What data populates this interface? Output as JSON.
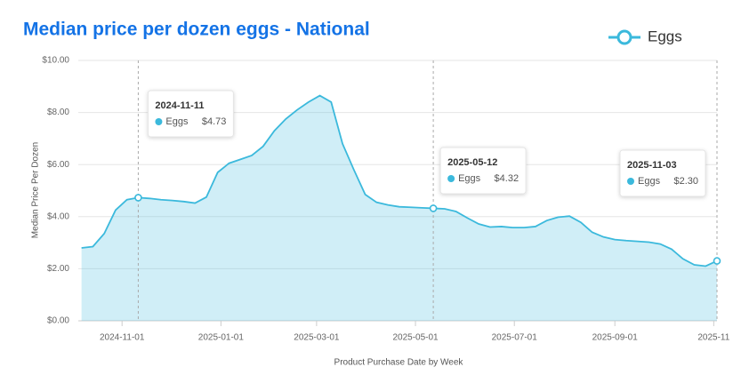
{
  "chart_data": {
    "type": "area",
    "title": "Median price per dozen eggs - National",
    "x_label": "Product Purchase Date by Week",
    "y_label": "Median Price Per Dozen",
    "x": [
      "2024-10-07",
      "2024-10-14",
      "2024-10-21",
      "2024-10-28",
      "2024-11-04",
      "2024-11-11",
      "2024-11-18",
      "2024-11-25",
      "2024-12-02",
      "2024-12-09",
      "2024-12-16",
      "2024-12-23",
      "2024-12-30",
      "2025-01-06",
      "2025-01-13",
      "2025-01-20",
      "2025-01-27",
      "2025-02-03",
      "2025-02-10",
      "2025-02-17",
      "2025-02-24",
      "2025-03-03",
      "2025-03-10",
      "2025-03-17",
      "2025-03-24",
      "2025-03-31",
      "2025-04-07",
      "2025-04-14",
      "2025-04-21",
      "2025-04-28",
      "2025-05-05",
      "2025-05-12",
      "2025-05-19",
      "2025-05-26",
      "2025-06-02",
      "2025-06-09",
      "2025-06-16",
      "2025-06-23",
      "2025-06-30",
      "2025-07-07",
      "2025-07-14",
      "2025-07-21",
      "2025-07-28",
      "2025-08-04",
      "2025-08-11",
      "2025-08-18",
      "2025-08-25",
      "2025-09-01",
      "2025-09-08",
      "2025-09-15",
      "2025-09-22",
      "2025-09-29",
      "2025-10-06",
      "2025-10-13",
      "2025-10-20",
      "2025-10-27",
      "2025-11-03"
    ],
    "series": [
      {
        "name": "Eggs",
        "color": "#3bb9dc",
        "values": [
          2.8,
          2.85,
          3.35,
          4.25,
          4.65,
          4.73,
          4.7,
          4.65,
          4.62,
          4.58,
          4.52,
          4.75,
          5.7,
          6.05,
          6.2,
          6.35,
          6.7,
          7.3,
          7.75,
          8.1,
          8.4,
          8.65,
          8.4,
          6.8,
          5.8,
          4.85,
          4.55,
          4.45,
          4.38,
          4.36,
          4.34,
          4.32,
          4.3,
          4.2,
          3.95,
          3.72,
          3.6,
          3.62,
          3.58,
          3.58,
          3.62,
          3.85,
          3.98,
          4.02,
          3.78,
          3.4,
          3.22,
          3.12,
          3.08,
          3.05,
          3.02,
          2.95,
          2.75,
          2.38,
          2.15,
          2.1,
          2.3
        ]
      }
    ],
    "xlim": [
      "2024-10-05",
      "2025-11-03"
    ],
    "xticks": [
      "2024-11-01",
      "2025-01-01",
      "2025-03-01",
      "2025-05-01",
      "2025-07-01",
      "2025-09-01",
      {
        "value": "2025-11-01",
        "label": "2025-11"
      }
    ],
    "ylim": [
      0,
      10
    ],
    "yticks": [
      {
        "value": 0,
        "label": "$0.00"
      },
      {
        "value": 2,
        "label": "$2.00"
      },
      {
        "value": 4,
        "label": "$4.00"
      },
      {
        "value": 6,
        "label": "$6.00"
      },
      {
        "value": 8,
        "label": "$8.00"
      },
      {
        "value": 10,
        "label": "$10.00"
      }
    ],
    "grid": true,
    "tooltips": [
      {
        "x": "2024-11-11",
        "label": "$4.73"
      },
      {
        "x": "2025-05-12",
        "label": "$4.32"
      },
      {
        "x": "2025-11-03",
        "label": "$2.30"
      }
    ]
  }
}
